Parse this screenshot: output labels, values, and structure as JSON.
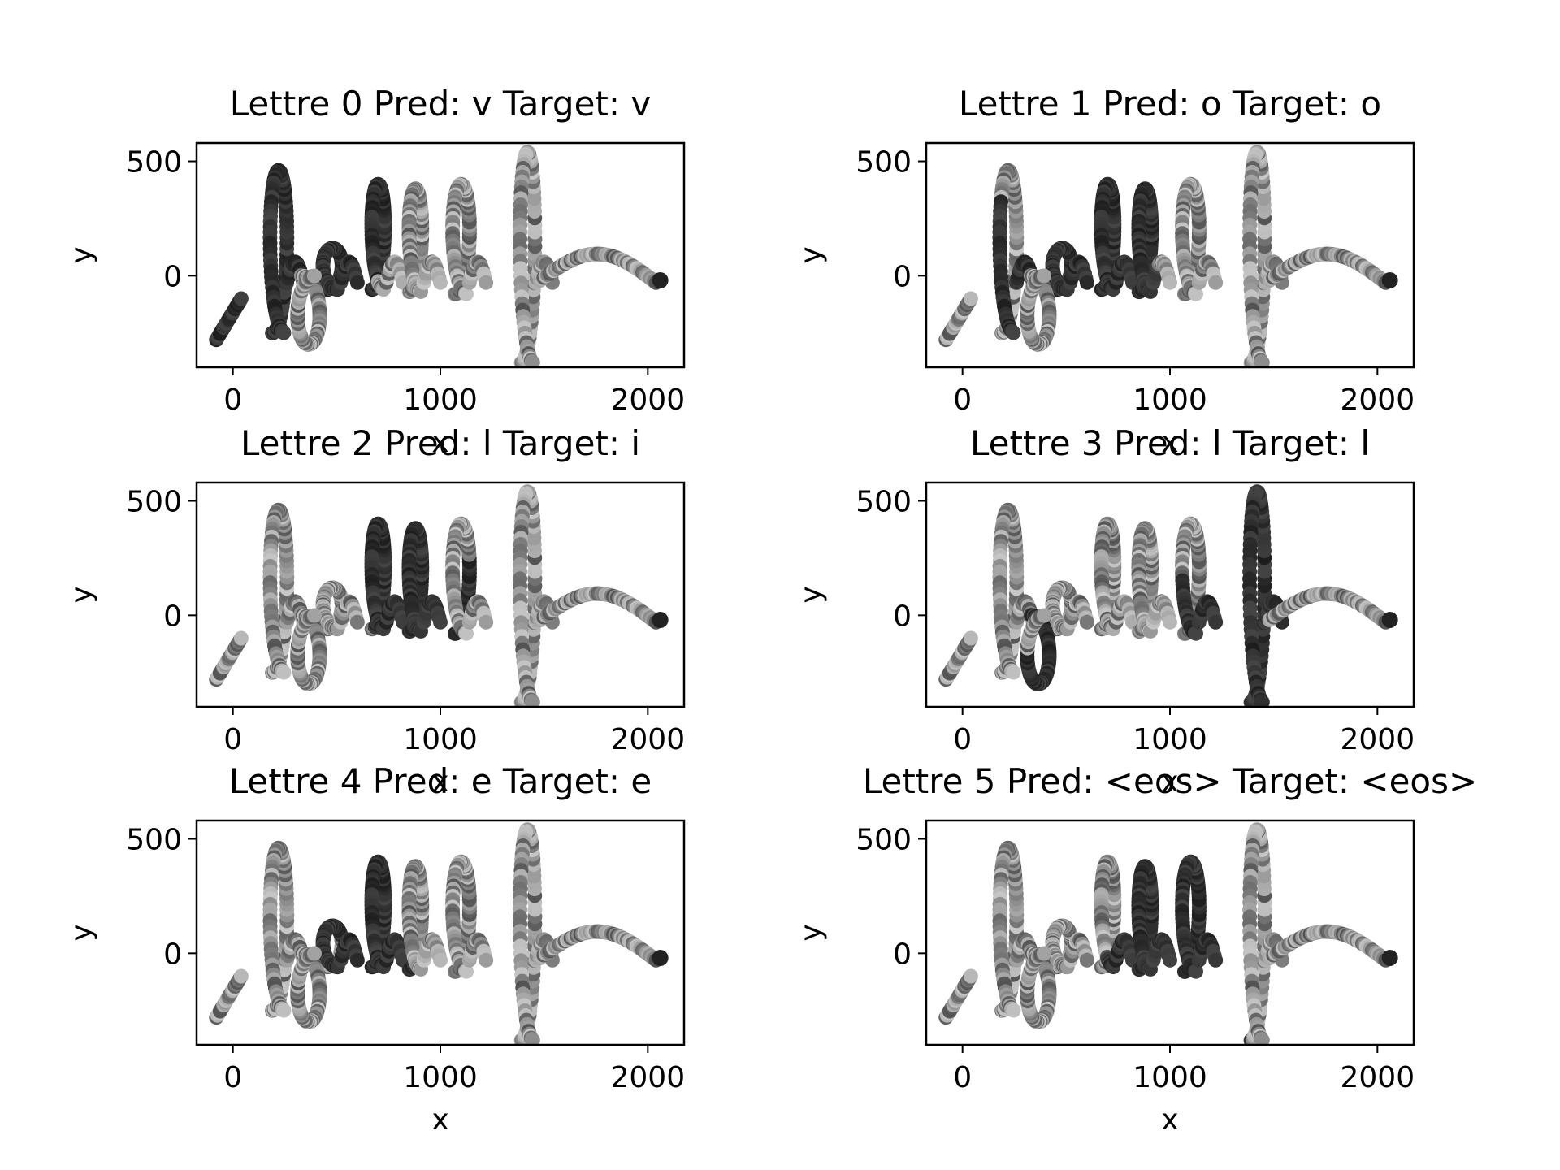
{
  "chart_data": [
    {
      "type": "scatter",
      "title": "Lettre 0 Pred: v Target: v",
      "xlabel": "x",
      "ylabel": "y",
      "xlim": [
        -175,
        2175
      ],
      "ylim": [
        -400,
        580
      ],
      "xticks": [
        "0",
        "1000",
        "2000"
      ],
      "yticks": [
        "500",
        "0"
      ],
      "color_scale": "gray",
      "highlight_range": [
        0.0,
        0.4
      ],
      "grid": false
    },
    {
      "type": "scatter",
      "title": "Lettre 1 Pred: o Target: o",
      "xlabel": "x",
      "ylabel": "y",
      "xlim": [
        -175,
        2175
      ],
      "ylim": [
        -400,
        580
      ],
      "xticks": [
        "0",
        "1000",
        "2000"
      ],
      "yticks": [
        "500",
        "0"
      ],
      "color_scale": "gray",
      "highlight_range": [
        0.1,
        0.55
      ],
      "grid": false
    },
    {
      "type": "scatter",
      "title": "Lettre 2 Pred: l Target: i",
      "xlabel": "x",
      "ylabel": "y",
      "xlim": [
        -175,
        2175
      ],
      "ylim": [
        -400,
        580
      ],
      "xticks": [
        "0",
        "1000",
        "2000"
      ],
      "yticks": [
        "500",
        "0"
      ],
      "color_scale": "gray",
      "highlight_range": [
        0.3,
        0.6
      ],
      "grid": false
    },
    {
      "type": "scatter",
      "title": "Lettre 3 Pred: l Target: l",
      "xlabel": "x",
      "ylabel": "y",
      "xlim": [
        -175,
        2175
      ],
      "ylim": [
        -400,
        580
      ],
      "xticks": [
        "0",
        "1000",
        "2000"
      ],
      "yticks": [
        "500",
        "0"
      ],
      "color_scale": "gray",
      "highlight_range": [
        0.65,
        0.9
      ],
      "grid": false
    },
    {
      "type": "scatter",
      "title": "Lettre 4 Pred: e Target: e",
      "xlabel": "x",
      "ylabel": "y",
      "xlim": [
        -175,
        2175
      ],
      "ylim": [
        -400,
        580
      ],
      "xticks": [
        "0",
        "1000",
        "2000"
      ],
      "yticks": [
        "500",
        "0"
      ],
      "color_scale": "gray",
      "highlight_range": [
        0.2,
        0.45
      ],
      "grid": false
    },
    {
      "type": "scatter",
      "title": "Lettre 5 Pred: <eos> Target: <eos>",
      "xlabel": "x",
      "ylabel": "y",
      "xlim": [
        -175,
        2175
      ],
      "ylim": [
        -400,
        580
      ],
      "xticks": [
        "0",
        "1000",
        "2000"
      ],
      "yticks": [
        "500",
        "0"
      ],
      "color_scale": "gray",
      "highlight_range": [
        0.4,
        0.7
      ],
      "grid": false
    }
  ]
}
